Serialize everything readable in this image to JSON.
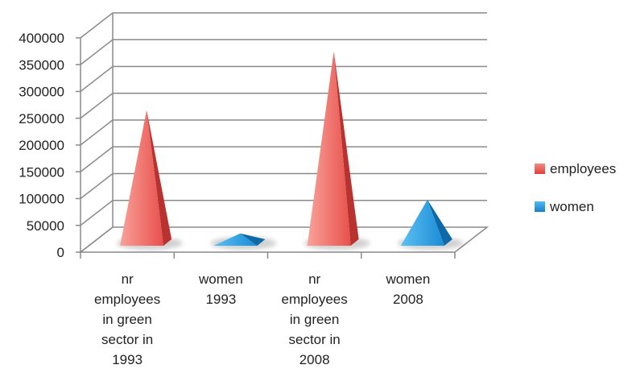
{
  "chart_data": {
    "type": "bar",
    "style": "3d-pyramid",
    "categories": [
      "nr employees in green sector in 1993",
      "women 1993",
      "nr employees in green sector in 2008",
      "women 2008"
    ],
    "category_lines": [
      [
        "nr",
        "employees",
        "in green",
        "sector in",
        "1993"
      ],
      [
        "women",
        "1993"
      ],
      [
        "nr",
        "employees",
        "in green",
        "sector in",
        "2008"
      ],
      [
        "women",
        "2008"
      ]
    ],
    "series": [
      {
        "name": "employees",
        "color": "#e8534f",
        "points": [
          {
            "index": 0,
            "value": 265000
          },
          {
            "index": 2,
            "value": 375000
          }
        ]
      },
      {
        "name": "women",
        "color": "#1f8fd6",
        "points": [
          {
            "index": 1,
            "value": 35000
          },
          {
            "index": 3,
            "value": 98000
          }
        ]
      }
    ],
    "ylim": [
      0,
      400000
    ],
    "yticks": [
      0,
      50000,
      100000,
      150000,
      200000,
      250000,
      300000,
      350000,
      400000
    ],
    "ytick_labels": [
      "0",
      "50000",
      "100000",
      "150000",
      "200000",
      "250000",
      "300000",
      "350000",
      "400000"
    ],
    "grid": true,
    "legend_position": "right",
    "title": "",
    "xlabel": "",
    "ylabel": ""
  }
}
